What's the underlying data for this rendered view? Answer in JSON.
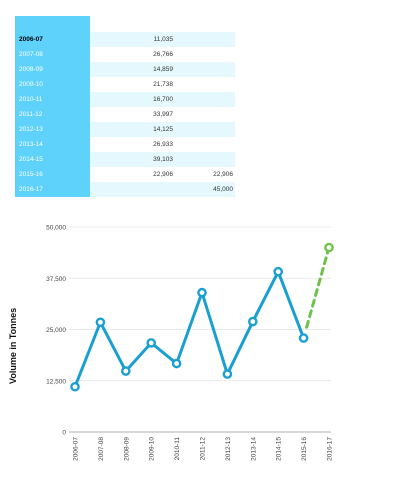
{
  "table": {
    "rows": [
      {
        "year": "2006-07",
        "actual": "11,035",
        "forecast": ""
      },
      {
        "year": "2007-08",
        "actual": "26,766",
        "forecast": ""
      },
      {
        "year": "2008-09",
        "actual": "14,859",
        "forecast": ""
      },
      {
        "year": "2009-10",
        "actual": "21,738",
        "forecast": ""
      },
      {
        "year": "2010-11",
        "actual": "16,700",
        "forecast": ""
      },
      {
        "year": "2011-12",
        "actual": "33,997",
        "forecast": ""
      },
      {
        "year": "2012-13",
        "actual": "14,125",
        "forecast": ""
      },
      {
        "year": "2013-14",
        "actual": "26,933",
        "forecast": ""
      },
      {
        "year": "2014-15",
        "actual": "39,103",
        "forecast": ""
      },
      {
        "year": "2015-16",
        "actual": "22,906",
        "forecast": "22,906"
      },
      {
        "year": "2016-17",
        "actual": "",
        "forecast": "45,000"
      }
    ]
  },
  "chart_data": {
    "type": "line",
    "ylabel": "Volume in Tonnes",
    "ylim": [
      0,
      50000
    ],
    "yticks": [
      "0",
      "12,500",
      "25,000",
      "37,500",
      "50,000"
    ],
    "categories": [
      "2006-07",
      "2007-08",
      "2008-09",
      "2009-10",
      "2010-11",
      "2011-12",
      "2012-13",
      "2013-14",
      "2014-15",
      "2015-16",
      "2016-17"
    ],
    "series": [
      {
        "values": [
          11035,
          26766,
          14859,
          21738,
          16700,
          33997,
          14125,
          26933,
          39103,
          22906,
          null
        ],
        "color": "#1a9fd1",
        "style": "solid"
      },
      {
        "values": [
          null,
          null,
          null,
          null,
          null,
          null,
          null,
          null,
          null,
          22906,
          45000
        ],
        "color": "#6cc24a",
        "style": "dashed"
      }
    ],
    "grid": true
  }
}
